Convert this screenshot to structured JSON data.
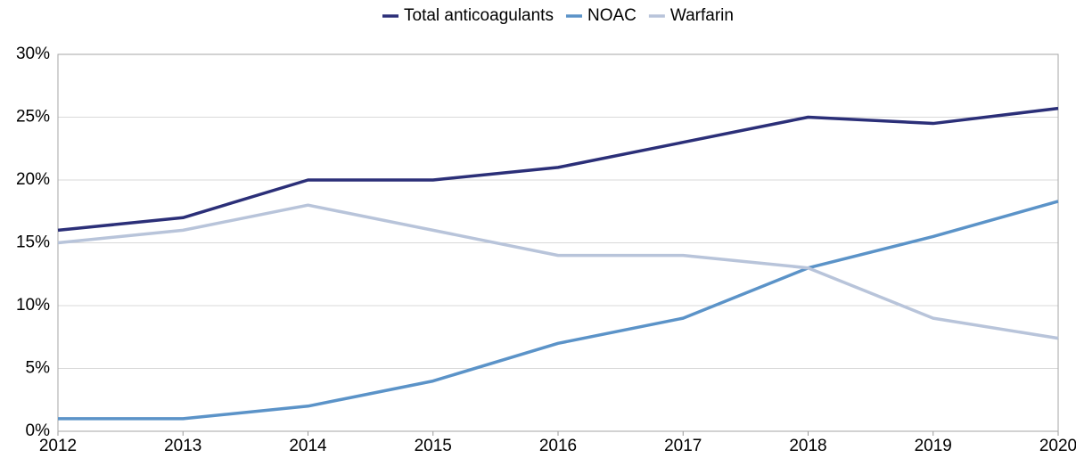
{
  "chart_data": {
    "type": "line",
    "x": [
      2012,
      2013,
      2014,
      2015,
      2016,
      2017,
      2018,
      2019,
      2020
    ],
    "series": [
      {
        "name": "Total anticoagulants",
        "color": "#2b2f78",
        "values": [
          16,
          17,
          20,
          20,
          21,
          23,
          25,
          24.5,
          25.7
        ]
      },
      {
        "name": "NOAC",
        "color": "#5b93c8",
        "values": [
          1,
          1,
          2,
          4,
          7,
          9,
          13,
          15.5,
          18.3
        ]
      },
      {
        "name": "Warfarin",
        "color": "#b8c4da",
        "values": [
          15,
          16,
          18,
          16,
          14,
          14,
          13,
          9,
          7.4
        ]
      }
    ],
    "xlim": [
      2012,
      2020
    ],
    "xticks": [
      2012,
      2013,
      2014,
      2015,
      2016,
      2017,
      2018,
      2019,
      2020
    ],
    "ylim": [
      0,
      30
    ],
    "yticks": [
      {
        "value": 0,
        "label": "0%"
      },
      {
        "value": 5,
        "label": "5%"
      },
      {
        "value": 10,
        "label": "10%"
      },
      {
        "value": 15,
        "label": "15%"
      },
      {
        "value": 20,
        "label": "20%"
      },
      {
        "value": 25,
        "label": "25%"
      },
      {
        "value": 30,
        "label": "30%"
      }
    ],
    "grid": true,
    "legend": "top"
  }
}
